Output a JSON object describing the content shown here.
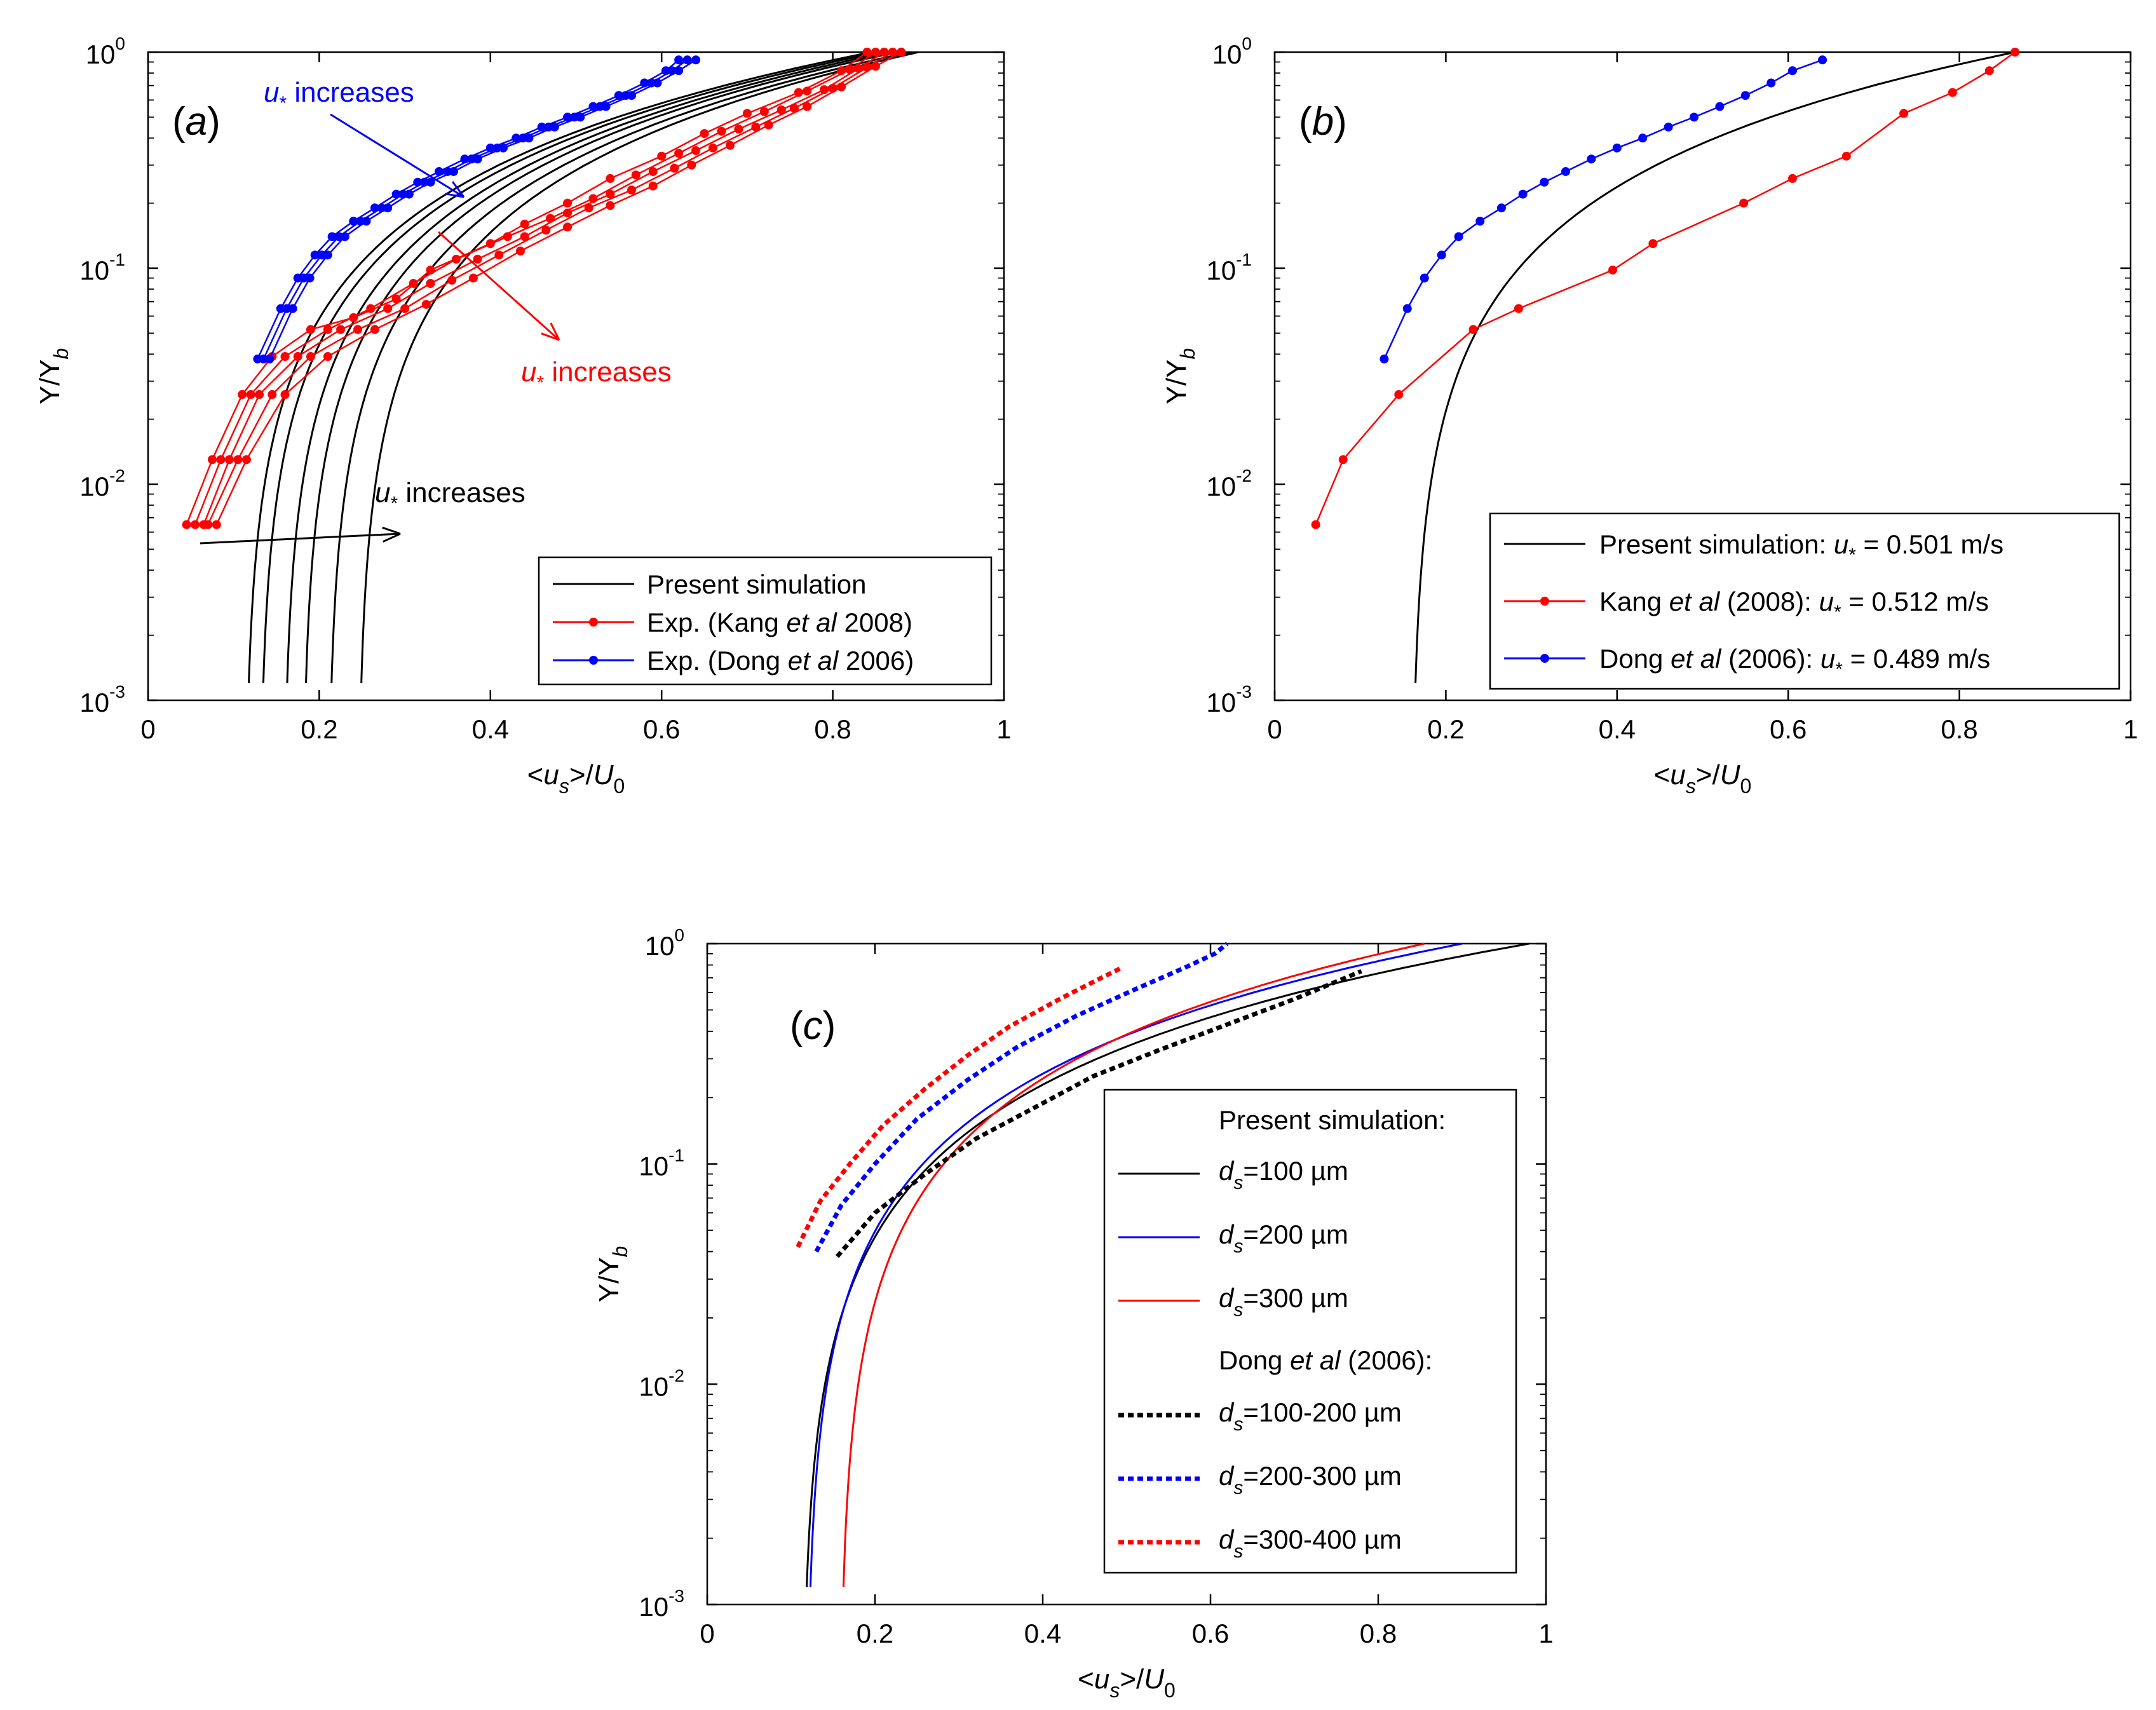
{
  "chart_data": [
    {
      "panel": "a",
      "type": "line",
      "label_prefix": "(",
      "label_letter": "a",
      "label_suffix": ")",
      "xlabel": "<u_s>/U_0",
      "ylabel": "Y/Y_b",
      "xlim": [
        0,
        1
      ],
      "ylim": [
        0.001,
        1
      ],
      "yscale": "log",
      "xticks": [
        "0",
        "0.2",
        "0.4",
        "0.6",
        "0.8",
        "1"
      ],
      "yticks": [
        "10",
        "10",
        "10",
        "10"
      ],
      "ytick_exponents": [
        "-3",
        "-2",
        "-1",
        "0"
      ],
      "legend": {
        "position": "bottom-right",
        "entries": [
          {
            "text": "Present simulation",
            "color": "#000000",
            "marker": false
          },
          {
            "text_pre": "Exp. (Kang ",
            "text_it": "et al",
            "text_post": " 2008)",
            "color": "#ff0000",
            "marker": true
          },
          {
            "text_pre": "Exp. (Dong ",
            "text_it": "et al",
            "text_post": " 2006)",
            "color": "#0000ff",
            "marker": true
          }
        ]
      },
      "annotations": [
        {
          "symbol": "u",
          "subscript": "*",
          "text": " increases",
          "color": "#0000ff"
        },
        {
          "symbol": "u",
          "subscript": "*",
          "text": " increases",
          "color": "#ff0000"
        },
        {
          "symbol": "u",
          "subscript": "*",
          "text": " increases",
          "color": "#000000"
        }
      ],
      "simulation_series": [
        {
          "name": "sim-1",
          "x0": 0.113,
          "x1": 0.845
        },
        {
          "name": "sim-2",
          "x0": 0.13,
          "x1": 0.855
        },
        {
          "name": "sim-3",
          "x0": 0.158,
          "x1": 0.865
        },
        {
          "name": "sim-4",
          "x0": 0.18,
          "x1": 0.875
        },
        {
          "name": "sim-5",
          "x0": 0.21,
          "x1": 0.89
        },
        {
          "name": "sim-6",
          "x0": 0.245,
          "x1": 0.9
        }
      ],
      "kang_series": [
        {
          "name": "kang-1",
          "x": [
            0.045,
            0.075,
            0.11,
            0.145,
            0.19,
            0.24,
            0.29,
            0.33,
            0.4,
            0.44,
            0.49,
            0.54,
            0.6,
            0.65,
            0.7,
            0.76,
            0.81,
            0.84
          ],
          "y": [
            0.0065,
            0.013,
            0.026,
            0.039,
            0.052,
            0.059,
            0.072,
            0.098,
            0.13,
            0.16,
            0.2,
            0.26,
            0.33,
            0.42,
            0.52,
            0.65,
            0.82,
            1.0
          ]
        },
        {
          "name": "kang-2",
          "x": [
            0.055,
            0.085,
            0.12,
            0.16,
            0.21,
            0.26,
            0.31,
            0.36,
            0.42,
            0.47,
            0.52,
            0.57,
            0.62,
            0.67,
            0.72,
            0.77,
            0.82,
            0.85
          ],
          "y": [
            0.0065,
            0.013,
            0.026,
            0.039,
            0.052,
            0.065,
            0.085,
            0.11,
            0.14,
            0.17,
            0.21,
            0.27,
            0.34,
            0.43,
            0.53,
            0.66,
            0.83,
            1.0
          ]
        },
        {
          "name": "kang-3",
          "x": [
            0.065,
            0.095,
            0.13,
            0.175,
            0.225,
            0.28,
            0.33,
            0.385,
            0.44,
            0.49,
            0.54,
            0.59,
            0.64,
            0.69,
            0.74,
            0.79,
            0.83,
            0.86
          ],
          "y": [
            0.0065,
            0.013,
            0.026,
            0.039,
            0.052,
            0.065,
            0.085,
            0.11,
            0.14,
            0.18,
            0.22,
            0.28,
            0.35,
            0.44,
            0.54,
            0.67,
            0.84,
            1.0
          ]
        },
        {
          "name": "kang-4",
          "x": [
            0.07,
            0.105,
            0.145,
            0.19,
            0.245,
            0.3,
            0.355,
            0.41,
            0.465,
            0.515,
            0.565,
            0.615,
            0.66,
            0.71,
            0.755,
            0.8,
            0.84,
            0.87
          ],
          "y": [
            0.0065,
            0.013,
            0.026,
            0.039,
            0.052,
            0.065,
            0.088,
            0.115,
            0.15,
            0.19,
            0.23,
            0.29,
            0.36,
            0.45,
            0.55,
            0.68,
            0.85,
            1.0
          ]
        },
        {
          "name": "kang-5",
          "x": [
            0.08,
            0.115,
            0.16,
            0.21,
            0.265,
            0.325,
            0.38,
            0.435,
            0.49,
            0.54,
            0.59,
            0.635,
            0.68,
            0.725,
            0.77,
            0.81,
            0.85,
            0.88
          ],
          "y": [
            0.0065,
            0.013,
            0.026,
            0.039,
            0.052,
            0.068,
            0.09,
            0.12,
            0.155,
            0.195,
            0.24,
            0.3,
            0.37,
            0.46,
            0.56,
            0.69,
            0.86,
            1.0
          ]
        }
      ],
      "dong_series": [
        {
          "name": "dong-1",
          "x": [
            0.128,
            0.155,
            0.175,
            0.195,
            0.215,
            0.24,
            0.265,
            0.29,
            0.315,
            0.34,
            0.37,
            0.4,
            0.43,
            0.46,
            0.49,
            0.52,
            0.55,
            0.58,
            0.605,
            0.62
          ],
          "y": [
            0.038,
            0.065,
            0.09,
            0.115,
            0.14,
            0.165,
            0.19,
            0.22,
            0.25,
            0.28,
            0.32,
            0.36,
            0.4,
            0.45,
            0.5,
            0.56,
            0.63,
            0.72,
            0.82,
            0.92
          ]
        },
        {
          "name": "dong-2",
          "x": [
            0.135,
            0.162,
            0.182,
            0.203,
            0.223,
            0.248,
            0.273,
            0.298,
            0.323,
            0.35,
            0.378,
            0.408,
            0.438,
            0.468,
            0.498,
            0.528,
            0.558,
            0.588,
            0.612,
            0.63
          ],
          "y": [
            0.038,
            0.065,
            0.09,
            0.115,
            0.14,
            0.165,
            0.19,
            0.22,
            0.25,
            0.28,
            0.32,
            0.36,
            0.4,
            0.45,
            0.5,
            0.56,
            0.63,
            0.72,
            0.82,
            0.92
          ]
        },
        {
          "name": "dong-3",
          "x": [
            0.142,
            0.169,
            0.189,
            0.21,
            0.23,
            0.255,
            0.28,
            0.305,
            0.33,
            0.357,
            0.385,
            0.415,
            0.445,
            0.475,
            0.505,
            0.535,
            0.565,
            0.595,
            0.62,
            0.64
          ],
          "y": [
            0.038,
            0.065,
            0.09,
            0.115,
            0.14,
            0.165,
            0.19,
            0.22,
            0.25,
            0.28,
            0.32,
            0.36,
            0.4,
            0.45,
            0.5,
            0.56,
            0.63,
            0.72,
            0.82,
            0.92
          ]
        }
      ]
    },
    {
      "panel": "b",
      "type": "line",
      "label_prefix": "(",
      "label_letter": "b",
      "label_suffix": ")",
      "xlabel": "<u_s>/U_0",
      "ylabel": "Y/Y_b",
      "xlim": [
        0,
        1
      ],
      "ylim": [
        0.001,
        1
      ],
      "yscale": "log",
      "xticks": [
        "0",
        "0.2",
        "0.4",
        "0.6",
        "0.8",
        "1"
      ],
      "yticks": [
        "10",
        "10",
        "10",
        "10"
      ],
      "ytick_exponents": [
        "-3",
        "-2",
        "-1",
        "0"
      ],
      "legend": {
        "position": "bottom-right",
        "entries": [
          {
            "text_pre": "Present simulation: ",
            "text_it": "",
            "text_post": "",
            "value": " = 0.501 m/s",
            "color": "#000000",
            "marker": false
          },
          {
            "text_pre": "Kang ",
            "text_it": "et al",
            "text_post": " (2008): ",
            "value": " = 0.512 m/s",
            "color": "#ff0000",
            "marker": true
          },
          {
            "text_pre": "Dong ",
            "text_it": "et al",
            "text_post": " (2006): ",
            "value": " = 0.489 m/s",
            "color": "#0000ff",
            "marker": true
          }
        ]
      },
      "simulation_series": [
        {
          "name": "sim-0.501",
          "x0": 0.16,
          "x1": 0.865
        }
      ],
      "kang_series": [
        {
          "name": "kang-0.512",
          "x": [
            0.048,
            0.08,
            0.145,
            0.232,
            0.285,
            0.395,
            0.442,
            0.548,
            0.605,
            0.668,
            0.735,
            0.792,
            0.835,
            0.865
          ],
          "y": [
            0.0065,
            0.013,
            0.026,
            0.052,
            0.065,
            0.098,
            0.13,
            0.2,
            0.26,
            0.33,
            0.52,
            0.65,
            0.82,
            1.0
          ]
        }
      ],
      "dong_series": [
        {
          "name": "dong-0.489",
          "x": [
            0.128,
            0.155,
            0.175,
            0.195,
            0.215,
            0.24,
            0.265,
            0.29,
            0.315,
            0.34,
            0.37,
            0.4,
            0.43,
            0.46,
            0.49,
            0.52,
            0.55,
            0.58,
            0.605,
            0.64
          ],
          "y": [
            0.038,
            0.065,
            0.09,
            0.115,
            0.14,
            0.165,
            0.19,
            0.22,
            0.25,
            0.28,
            0.32,
            0.36,
            0.4,
            0.45,
            0.5,
            0.56,
            0.63,
            0.72,
            0.82,
            0.92
          ]
        }
      ]
    },
    {
      "panel": "c",
      "type": "line",
      "label_prefix": "(",
      "label_letter": "c",
      "label_suffix": ")",
      "xlabel": "<u_s>/U_0",
      "ylabel": "Y/Y_b",
      "xlim": [
        0,
        1
      ],
      "ylim": [
        0.001,
        1
      ],
      "yscale": "log",
      "xticks": [
        "0",
        "0.2",
        "0.4",
        "0.6",
        "0.8",
        "1"
      ],
      "yticks": [
        "10",
        "10",
        "10",
        "10"
      ],
      "ytick_exponents": [
        "-3",
        "-2",
        "-1",
        "0"
      ],
      "legend": {
        "position": "right",
        "header1": "Present simulation:",
        "header2_pre": "Dong ",
        "header2_it": "et al",
        "header2_post": " (2006):",
        "entries": [
          {
            "d": "d",
            "sub": "s",
            "text": "=100 µm",
            "color": "#000000",
            "dashed": false
          },
          {
            "d": "d",
            "sub": "s",
            "text": "=200 µm",
            "color": "#0000ff",
            "dashed": false
          },
          {
            "d": "d",
            "sub": "s",
            "text": "=300 µm",
            "color": "#ff0000",
            "dashed": false
          },
          {
            "d": "d",
            "sub": "s",
            "text": "=100-200 µm",
            "color": "#000000",
            "dashed": true
          },
          {
            "d": "d",
            "sub": "s",
            "text": "=200-300 µm",
            "color": "#0000ff",
            "dashed": true
          },
          {
            "d": "d",
            "sub": "s",
            "text": "=300-400 µm",
            "color": "#ff0000",
            "dashed": true
          }
        ]
      },
      "simulation_series": [
        {
          "name": "sim-100um",
          "x0": 0.113,
          "x1": 0.98,
          "color": "#000000"
        },
        {
          "name": "sim-200um",
          "x0": 0.118,
          "x1": 0.9,
          "color": "#0000ff"
        },
        {
          "name": "sim-300um",
          "x0": 0.158,
          "x1": 0.855,
          "color": "#ff0000"
        }
      ],
      "dong_dashed_series": [
        {
          "name": "dong-100-200um",
          "color": "#000000",
          "x": [
            0.155,
            0.2,
            0.26,
            0.32,
            0.39,
            0.46,
            0.54,
            0.62,
            0.7,
            0.78
          ],
          "y": [
            0.038,
            0.06,
            0.09,
            0.13,
            0.18,
            0.25,
            0.33,
            0.43,
            0.56,
            0.75
          ]
        },
        {
          "name": "dong-200-300um",
          "color": "#0000ff",
          "x": [
            0.13,
            0.16,
            0.2,
            0.25,
            0.31,
            0.37,
            0.44,
            0.51,
            0.57,
            0.605,
            0.62
          ],
          "y": [
            0.04,
            0.065,
            0.1,
            0.16,
            0.24,
            0.34,
            0.47,
            0.62,
            0.78,
            0.9,
            1.0
          ]
        },
        {
          "name": "dong-300-400um",
          "color": "#ff0000",
          "x": [
            0.108,
            0.135,
            0.17,
            0.21,
            0.26,
            0.31,
            0.36,
            0.42,
            0.47,
            0.495
          ],
          "y": [
            0.042,
            0.068,
            0.1,
            0.15,
            0.22,
            0.31,
            0.42,
            0.56,
            0.7,
            0.78
          ]
        }
      ]
    }
  ]
}
